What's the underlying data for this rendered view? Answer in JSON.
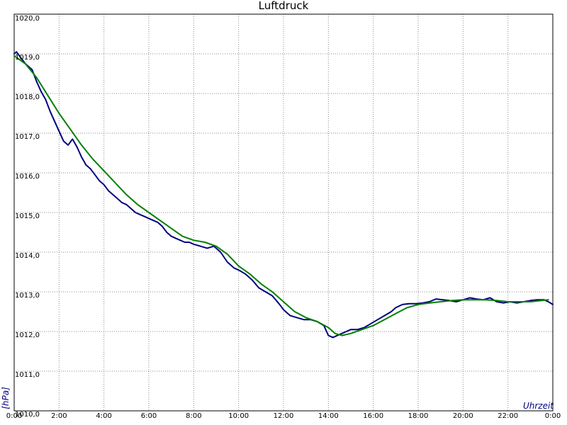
{
  "chart_data": {
    "type": "line",
    "title": "Luftdruck",
    "xlabel": "Uhrzeit",
    "ylabel": "[hPa]",
    "xlim": [
      0,
      24
    ],
    "ylim": [
      1010,
      1020
    ],
    "x_ticks": [
      0,
      2,
      4,
      6,
      8,
      10,
      12,
      14,
      16,
      18,
      20,
      22,
      24
    ],
    "x_tick_labels": [
      "0:00",
      "2:00",
      "4:00",
      "6:00",
      "8:00",
      "10:00",
      "12:00",
      "14:00",
      "16:00",
      "18:00",
      "20:00",
      "22:00",
      "0:00"
    ],
    "y_ticks": [
      1010,
      1011,
      1012,
      1013,
      1014,
      1015,
      1016,
      1017,
      1018,
      1019,
      1020
    ],
    "y_tick_labels": [
      "1010,0",
      "1011,0",
      "1012,0",
      "1013,0",
      "1014,0",
      "1015,0",
      "1016,0",
      "1017,0",
      "1018,0",
      "1019,0",
      "1020,0"
    ],
    "grid": true,
    "legend": "none",
    "series": [
      {
        "color": "#000080",
        "x": [
          0,
          0.1,
          0.3,
          0.5,
          0.8,
          1.0,
          1.2,
          1.4,
          1.6,
          1.8,
          2.0,
          2.2,
          2.4,
          2.6,
          2.8,
          3.0,
          3.2,
          3.4,
          3.6,
          3.8,
          4.0,
          4.2,
          4.4,
          4.6,
          4.8,
          5.0,
          5.2,
          5.4,
          5.6,
          5.8,
          6.0,
          6.2,
          6.4,
          6.6,
          6.8,
          7.0,
          7.2,
          7.4,
          7.6,
          7.8,
          8.0,
          8.3,
          8.6,
          8.9,
          9.2,
          9.5,
          9.8,
          10.0,
          10.3,
          10.6,
          10.9,
          11.2,
          11.5,
          11.8,
          12.0,
          12.3,
          12.6,
          12.9,
          13.2,
          13.5,
          13.8,
          14.0,
          14.2,
          14.4,
          14.6,
          14.8,
          15.0,
          15.3,
          15.6,
          15.9,
          16.2,
          16.5,
          16.8,
          17.0,
          17.3,
          17.6,
          17.9,
          18.2,
          18.5,
          18.8,
          19.1,
          19.4,
          19.7,
          20.0,
          20.3,
          20.6,
          20.9,
          21.2,
          21.5,
          21.8,
          22.1,
          22.4,
          22.7,
          23.0,
          23.3,
          23.6,
          23.8,
          24.0
        ],
        "y": [
          1019.0,
          1019.05,
          1018.9,
          1018.75,
          1018.6,
          1018.3,
          1018.05,
          1017.85,
          1017.55,
          1017.3,
          1017.05,
          1016.8,
          1016.7,
          1016.85,
          1016.65,
          1016.4,
          1016.2,
          1016.1,
          1015.95,
          1015.8,
          1015.7,
          1015.55,
          1015.45,
          1015.35,
          1015.25,
          1015.2,
          1015.1,
          1015.0,
          1014.95,
          1014.9,
          1014.85,
          1014.8,
          1014.75,
          1014.65,
          1014.5,
          1014.4,
          1014.35,
          1014.3,
          1014.25,
          1014.25,
          1014.2,
          1014.15,
          1014.1,
          1014.15,
          1014.0,
          1013.75,
          1013.6,
          1013.55,
          1013.45,
          1013.3,
          1013.1,
          1013.0,
          1012.9,
          1012.7,
          1012.55,
          1012.4,
          1012.35,
          1012.3,
          1012.3,
          1012.25,
          1012.15,
          1011.9,
          1011.85,
          1011.9,
          1011.95,
          1012.0,
          1012.05,
          1012.05,
          1012.1,
          1012.2,
          1012.3,
          1012.4,
          1012.5,
          1012.6,
          1012.68,
          1012.7,
          1012.7,
          1012.72,
          1012.75,
          1012.82,
          1012.8,
          1012.78,
          1012.75,
          1012.8,
          1012.85,
          1012.82,
          1012.8,
          1012.85,
          1012.75,
          1012.72,
          1012.75,
          1012.72,
          1012.75,
          1012.78,
          1012.8,
          1012.8,
          1012.75,
          1012.68
        ]
      },
      {
        "color": "#008000",
        "x": [
          0,
          0.5,
          1.0,
          1.5,
          2.0,
          2.5,
          3.0,
          3.5,
          4.0,
          4.5,
          5.0,
          5.5,
          6.0,
          6.5,
          7.0,
          7.5,
          8.0,
          8.5,
          9.0,
          9.5,
          10.0,
          10.5,
          11.0,
          11.5,
          12.0,
          12.5,
          13.0,
          13.5,
          14.0,
          14.3,
          14.6,
          15.0,
          15.5,
          16.0,
          16.5,
          17.0,
          17.5,
          18.0,
          18.5,
          19.0,
          19.5,
          20.0,
          20.5,
          21.0,
          21.5,
          22.0,
          22.5,
          23.0,
          23.5,
          23.8
        ],
        "y": [
          1018.95,
          1018.75,
          1018.4,
          1017.95,
          1017.5,
          1017.1,
          1016.7,
          1016.35,
          1016.05,
          1015.75,
          1015.45,
          1015.2,
          1015.0,
          1014.8,
          1014.6,
          1014.4,
          1014.3,
          1014.25,
          1014.15,
          1013.95,
          1013.65,
          1013.45,
          1013.2,
          1013.0,
          1012.75,
          1012.5,
          1012.35,
          1012.25,
          1012.1,
          1011.95,
          1011.9,
          1011.95,
          1012.05,
          1012.15,
          1012.3,
          1012.45,
          1012.6,
          1012.68,
          1012.72,
          1012.75,
          1012.78,
          1012.8,
          1012.8,
          1012.8,
          1012.78,
          1012.75,
          1012.75,
          1012.75,
          1012.78,
          1012.8
        ]
      }
    ]
  }
}
